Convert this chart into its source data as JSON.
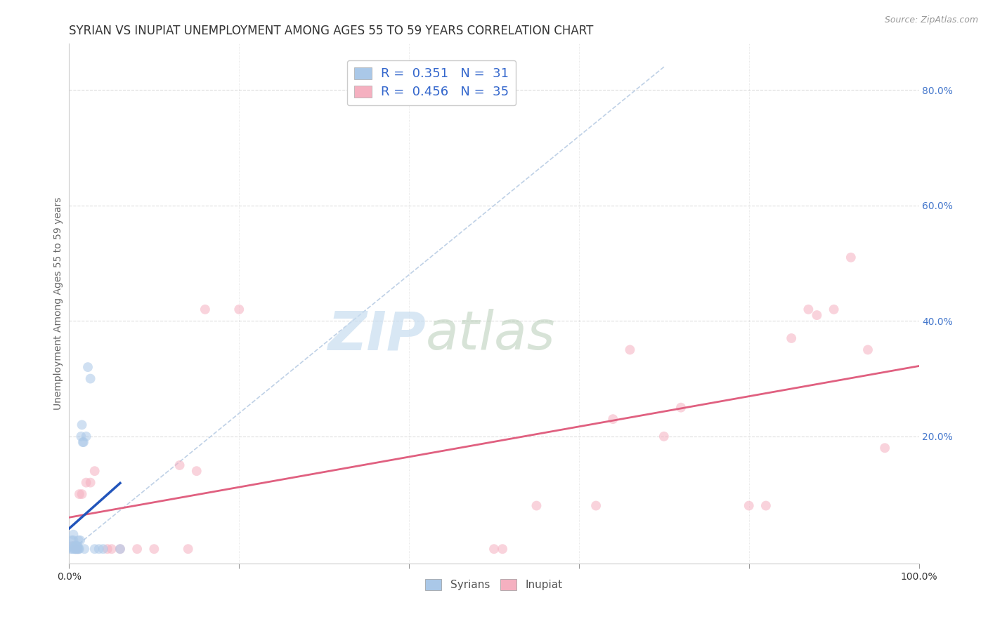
{
  "title": "SYRIAN VS INUPIAT UNEMPLOYMENT AMONG AGES 55 TO 59 YEARS CORRELATION CHART",
  "source": "Source: ZipAtlas.com",
  "ylabel": "Unemployment Among Ages 55 to 59 years",
  "xlim": [
    0,
    1.0
  ],
  "ylim": [
    -0.02,
    0.88
  ],
  "xticks": [
    0,
    0.2,
    0.4,
    0.6,
    0.8,
    1.0
  ],
  "xticklabels": [
    "0.0%",
    "",
    "",
    "",
    "",
    "100.0%"
  ],
  "ytick_right_positions": [
    0.2,
    0.4,
    0.6,
    0.8
  ],
  "ytick_right_labels": [
    "20.0%",
    "40.0%",
    "60.0%",
    "80.0%"
  ],
  "legend_r_syrian": "0.351",
  "legend_n_syrian": "31",
  "legend_r_inupiat": "0.456",
  "legend_n_inupiat": "35",
  "syrian_color": "#aac8e8",
  "inupiat_color": "#f5b0c0",
  "syrian_line_color": "#2255bb",
  "inupiat_line_color": "#e06080",
  "marker_size": 100,
  "marker_alpha": 0.55,
  "background_color": "#ffffff",
  "watermark_zip": "ZIP",
  "watermark_atlas": "atlas",
  "grid_color": "#dddddd",
  "diag_color": "#b8cce4",
  "syrian_x": [
    0.002,
    0.003,
    0.003,
    0.004,
    0.005,
    0.005,
    0.006,
    0.007,
    0.007,
    0.008,
    0.008,
    0.009,
    0.009,
    0.01,
    0.01,
    0.011,
    0.011,
    0.012,
    0.013,
    0.014,
    0.015,
    0.016,
    0.017,
    0.018,
    0.02,
    0.022,
    0.025,
    0.03,
    0.035,
    0.04,
    0.06
  ],
  "syrian_y": [
    0.005,
    0.01,
    0.02,
    0.005,
    0.02,
    0.03,
    0.005,
    0.01,
    0.005,
    0.01,
    0.005,
    0.01,
    0.005,
    0.005,
    0.01,
    0.005,
    0.02,
    0.005,
    0.02,
    0.2,
    0.22,
    0.19,
    0.19,
    0.005,
    0.2,
    0.32,
    0.3,
    0.005,
    0.005,
    0.005,
    0.005
  ],
  "inupiat_x": [
    0.005,
    0.008,
    0.01,
    0.012,
    0.015,
    0.02,
    0.025,
    0.03,
    0.045,
    0.05,
    0.06,
    0.08,
    0.1,
    0.13,
    0.14,
    0.15,
    0.16,
    0.2,
    0.5,
    0.51,
    0.55,
    0.62,
    0.64,
    0.66,
    0.7,
    0.72,
    0.8,
    0.82,
    0.85,
    0.87,
    0.88,
    0.9,
    0.92,
    0.94,
    0.96
  ],
  "inupiat_y": [
    0.01,
    0.005,
    0.005,
    0.1,
    0.1,
    0.12,
    0.12,
    0.14,
    0.005,
    0.005,
    0.005,
    0.005,
    0.005,
    0.15,
    0.005,
    0.14,
    0.42,
    0.42,
    0.005,
    0.005,
    0.08,
    0.08,
    0.23,
    0.35,
    0.2,
    0.25,
    0.08,
    0.08,
    0.37,
    0.42,
    0.41,
    0.42,
    0.51,
    0.35,
    0.18
  ],
  "title_fontsize": 12,
  "axis_label_fontsize": 10,
  "tick_fontsize": 10,
  "legend_fontsize": 12,
  "watermark_fontsize": 55
}
